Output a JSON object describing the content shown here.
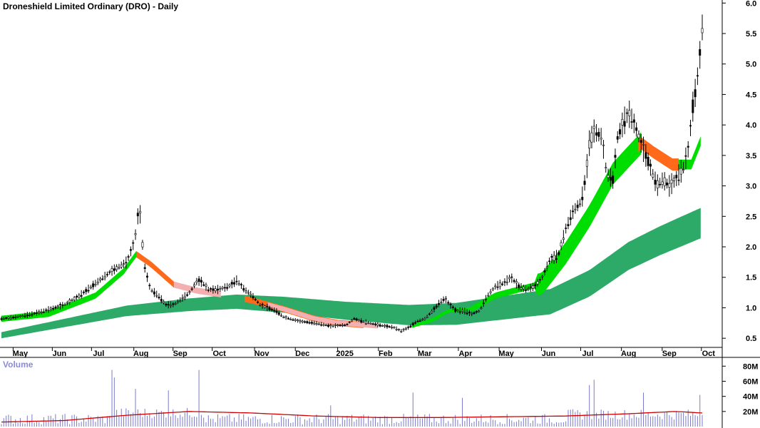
{
  "chart_title": "Droneshield Limited Ordinary (DRO) - Daily",
  "volume_label": "Volume",
  "chart_data": {
    "type": "candlestick",
    "title": "Droneshield Limited Ordinary (DRO) - Daily",
    "price_axis": {
      "ticks": [
        "6.0",
        "5.5",
        "5.0",
        "4.5",
        "4.0",
        "3.5",
        "3.0",
        "2.5",
        "2.0",
        "1.5",
        "1.0",
        "0.5"
      ],
      "range": [
        0.35,
        6.05
      ]
    },
    "time_axis": {
      "ticks": [
        "May",
        "Jun",
        "Jul",
        "Aug",
        "Sep",
        "Oct",
        "Nov",
        "Dec",
        "2025",
        "Feb",
        "Mar",
        "Apr",
        "May",
        "Jun",
        "Jul",
        "Aug",
        "Sep",
        "Oct"
      ]
    },
    "volume_axis": {
      "ticks": [
        "80M",
        "60M",
        "40M",
        "20M"
      ],
      "range": [
        0,
        85
      ]
    },
    "price_path": [
      [
        0,
        0.82
      ],
      [
        10,
        0.85
      ],
      [
        20,
        0.9
      ],
      [
        30,
        0.97
      ],
      [
        40,
        1.05
      ],
      [
        50,
        1.2
      ],
      [
        60,
        1.4
      ],
      [
        70,
        1.6
      ],
      [
        80,
        1.75
      ],
      [
        85,
        2.1
      ],
      [
        88,
        2.7
      ],
      [
        91,
        1.7
      ],
      [
        95,
        1.3
      ],
      [
        100,
        1.2
      ],
      [
        105,
        1.05
      ],
      [
        110,
        1.05
      ],
      [
        115,
        1.15
      ],
      [
        120,
        1.25
      ],
      [
        125,
        1.45
      ],
      [
        128,
        1.42
      ],
      [
        132,
        1.3
      ],
      [
        138,
        1.3
      ],
      [
        145,
        1.35
      ],
      [
        150,
        1.45
      ],
      [
        155,
        1.3
      ],
      [
        160,
        1.2
      ],
      [
        165,
        1.05
      ],
      [
        170,
        1.0
      ],
      [
        175,
        0.95
      ],
      [
        180,
        0.85
      ],
      [
        190,
        0.78
      ],
      [
        200,
        0.75
      ],
      [
        210,
        0.7
      ],
      [
        220,
        0.72
      ],
      [
        225,
        0.82
      ],
      [
        230,
        0.78
      ],
      [
        240,
        0.72
      ],
      [
        250,
        0.68
      ],
      [
        255,
        0.62
      ],
      [
        260,
        0.68
      ],
      [
        265,
        0.78
      ],
      [
        270,
        0.82
      ],
      [
        275,
        0.95
      ],
      [
        280,
        1.1
      ],
      [
        283,
        1.15
      ],
      [
        286,
        1.05
      ],
      [
        290,
        0.95
      ],
      [
        295,
        0.95
      ],
      [
        300,
        0.9
      ],
      [
        305,
        0.95
      ],
      [
        310,
        1.2
      ],
      [
        315,
        1.35
      ],
      [
        320,
        1.4
      ],
      [
        325,
        1.5
      ],
      [
        330,
        1.35
      ],
      [
        335,
        1.3
      ],
      [
        340,
        1.35
      ],
      [
        345,
        1.5
      ],
      [
        350,
        1.8
      ],
      [
        355,
        1.85
      ],
      [
        360,
        2.3
      ],
      [
        365,
        2.6
      ],
      [
        370,
        2.75
      ],
      [
        373,
        3.2
      ],
      [
        375,
        3.7
      ],
      [
        378,
        3.9
      ],
      [
        383,
        3.8
      ],
      [
        386,
        3.2
      ],
      [
        390,
        3.1
      ],
      [
        393,
        3.8
      ],
      [
        396,
        4.0
      ],
      [
        400,
        4.2
      ],
      [
        404,
        4.0
      ],
      [
        408,
        3.7
      ],
      [
        411,
        3.5
      ],
      [
        414,
        3.3
      ],
      [
        418,
        3.0
      ],
      [
        422,
        3.1
      ],
      [
        426,
        3.0
      ],
      [
        430,
        3.1
      ],
      [
        435,
        3.3
      ],
      [
        438,
        3.6
      ],
      [
        441,
        4.3
      ],
      [
        443,
        4.6
      ],
      [
        445,
        5.0
      ],
      [
        447,
        5.6
      ]
    ],
    "series": [
      {
        "name": "",
        "color": "#00dd00",
        "values": [
          [
            0,
            0.82
          ],
          [
            30,
            0.9
          ],
          [
            60,
            1.2
          ],
          [
            78,
            1.6
          ],
          [
            86,
            1.88
          ],
          [
            95,
            1.72
          ],
          [
            110,
            1.38
          ],
          [
            125,
            1.28
          ],
          [
            140,
            1.22
          ],
          [
            160,
            1.12
          ],
          [
            180,
            0.98
          ],
          [
            200,
            0.82
          ],
          [
            215,
            0.75
          ],
          [
            230,
            0.72
          ],
          [
            250,
            0.68
          ],
          [
            262,
            0.7
          ],
          [
            275,
            0.8
          ],
          [
            285,
            0.95
          ],
          [
            300,
            0.98
          ],
          [
            315,
            1.2
          ],
          [
            330,
            1.3
          ],
          [
            345,
            1.4
          ],
          [
            360,
            1.9
          ],
          [
            375,
            2.5
          ],
          [
            390,
            3.2
          ],
          [
            408,
            3.7
          ],
          [
            416,
            3.55
          ],
          [
            428,
            3.35
          ],
          [
            440,
            3.35
          ],
          [
            447,
            3.8
          ]
        ]
      },
      {
        "name": "",
        "color": "#2daa68",
        "values": [
          [
            0,
            0.55
          ],
          [
            40,
            0.75
          ],
          [
            80,
            0.95
          ],
          [
            120,
            1.05
          ],
          [
            150,
            1.1
          ],
          [
            180,
            1.05
          ],
          [
            220,
            0.95
          ],
          [
            260,
            0.88
          ],
          [
            290,
            0.9
          ],
          [
            320,
            1.0
          ],
          [
            350,
            1.1
          ],
          [
            375,
            1.4
          ],
          [
            400,
            1.85
          ],
          [
            420,
            2.1
          ],
          [
            447,
            2.4
          ]
        ]
      }
    ],
    "volume_average": [
      [
        0,
        6
      ],
      [
        40,
        8
      ],
      [
        80,
        15
      ],
      [
        120,
        20
      ],
      [
        160,
        18
      ],
      [
        200,
        14
      ],
      [
        240,
        12
      ],
      [
        280,
        12
      ],
      [
        320,
        13
      ],
      [
        360,
        14
      ],
      [
        400,
        17
      ],
      [
        430,
        20
      ],
      [
        447,
        18
      ]
    ],
    "volume_spikes": [
      [
        71,
        75
      ],
      [
        72,
        65
      ],
      [
        85,
        50
      ],
      [
        107,
        48
      ],
      [
        126,
        75
      ],
      [
        210,
        28
      ],
      [
        263,
        45
      ],
      [
        294,
        38
      ],
      [
        375,
        55
      ],
      [
        378,
        62
      ],
      [
        410,
        45
      ],
      [
        445,
        42
      ]
    ]
  }
}
